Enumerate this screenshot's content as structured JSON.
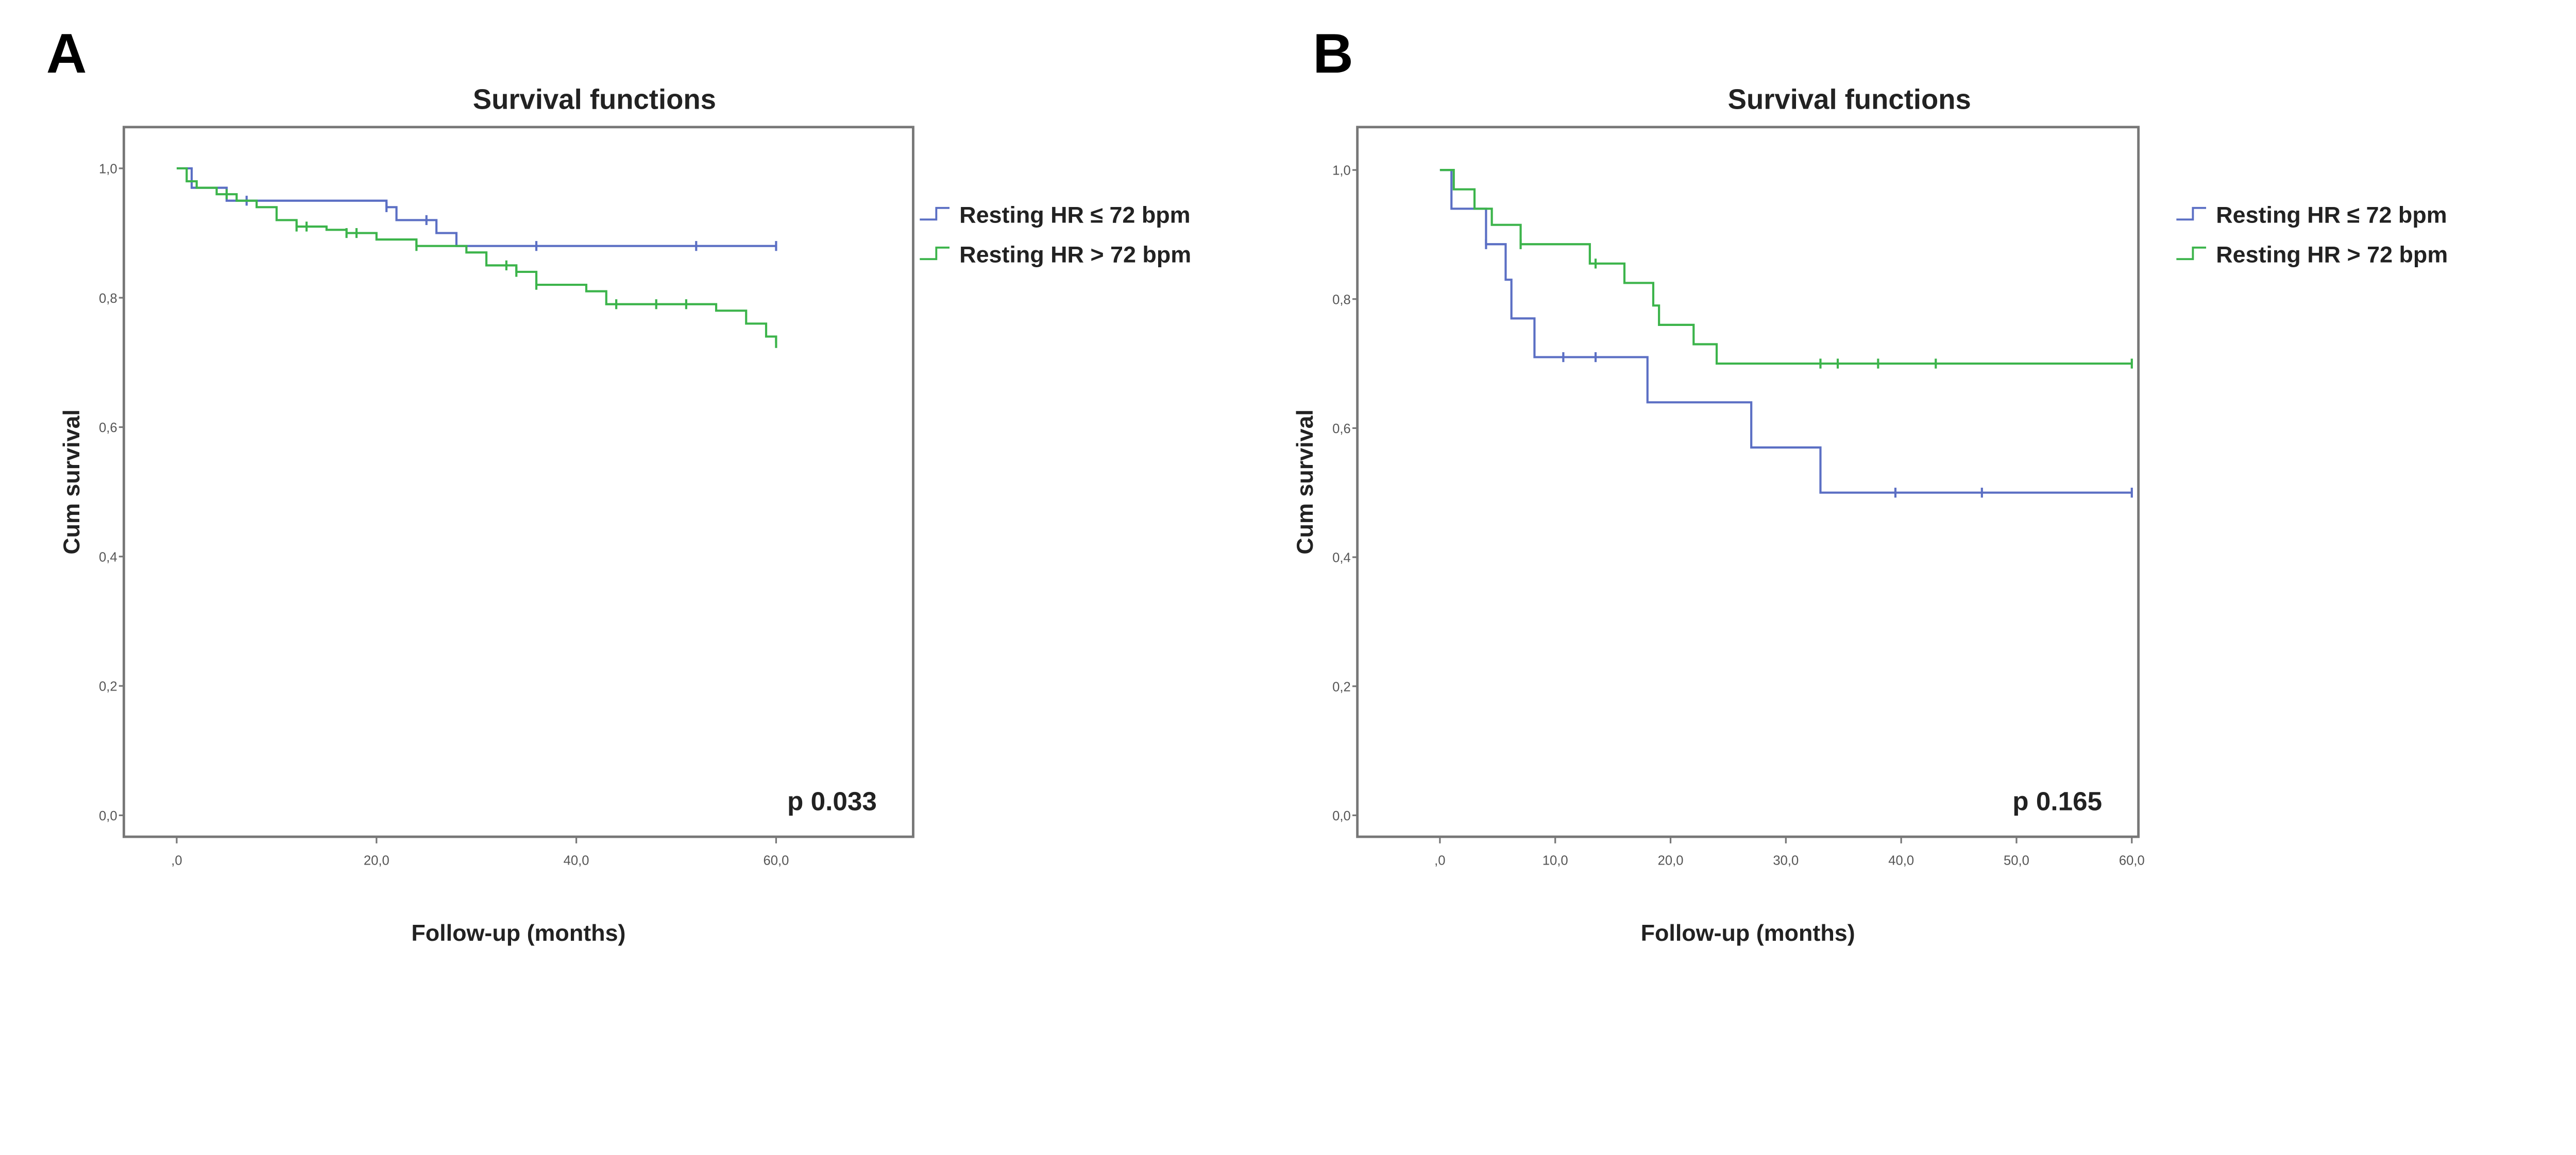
{
  "chart_data": [
    {
      "type": "line",
      "panel": "A",
      "title": "Survival functions",
      "xlabel": "Follow-up (months)",
      "ylabel": "Cum survival",
      "xticks": [
        ",0",
        "20,0",
        "40,0",
        "60,0"
      ],
      "xtick_values": [
        0,
        20,
        40,
        60
      ],
      "yticks": [
        "0,0",
        "0,2",
        "0,4",
        "0,6",
        "0,8",
        "1,0"
      ],
      "ytick_values": [
        0,
        0.2,
        0.4,
        0.6,
        0.8,
        1.0
      ],
      "xlim": [
        -3,
        72
      ],
      "ylim": [
        -0.05,
        1.1
      ],
      "annotation": "p 0.033",
      "legend_position": "right",
      "series": [
        {
          "name": "Resting HR ≤ 72 bpm",
          "color": "#5b6fc4",
          "steps": [
            [
              0,
              1.0
            ],
            [
              1.5,
              0.97
            ],
            [
              5,
              0.95
            ],
            [
              21,
              0.94
            ],
            [
              22,
              0.92
            ],
            [
              26,
              0.9
            ],
            [
              28,
              0.88
            ],
            [
              60,
              0.88
            ]
          ],
          "censored": [
            7,
            21,
            25,
            36,
            52,
            60
          ]
        },
        {
          "name": "Resting HR > 72 bpm",
          "color": "#3cb44b",
          "steps": [
            [
              0,
              1.0
            ],
            [
              1,
              0.98
            ],
            [
              2,
              0.97
            ],
            [
              4,
              0.96
            ],
            [
              6,
              0.95
            ],
            [
              8,
              0.94
            ],
            [
              10,
              0.92
            ],
            [
              12,
              0.91
            ],
            [
              15,
              0.905
            ],
            [
              17,
              0.9
            ],
            [
              20,
              0.89
            ],
            [
              24,
              0.88
            ],
            [
              29,
              0.87
            ],
            [
              31,
              0.85
            ],
            [
              34,
              0.84
            ],
            [
              36,
              0.82
            ],
            [
              41,
              0.81
            ],
            [
              43,
              0.79
            ],
            [
              52,
              0.79
            ],
            [
              54,
              0.78
            ],
            [
              57,
              0.76
            ],
            [
              59,
              0.74
            ],
            [
              60,
              0.73
            ]
          ],
          "censored": [
            5,
            12,
            13,
            17,
            18,
            24,
            33,
            34,
            36,
            44,
            48,
            51,
            60
          ]
        }
      ]
    },
    {
      "type": "line",
      "panel": "B",
      "title": "Survival functions",
      "xlabel": "Follow-up (months)",
      "ylabel": "Cum survival",
      "xticks": [
        ",0",
        "10,0",
        "20,0",
        "30,0",
        "40,0",
        "50,0",
        "60,0"
      ],
      "xtick_values": [
        0,
        10,
        20,
        30,
        40,
        50,
        60
      ],
      "yticks": [
        "0,0",
        "0,2",
        "0,4",
        "0,6",
        "0,8",
        "1,0"
      ],
      "ytick_values": [
        0,
        0.2,
        0.4,
        0.6,
        0.8,
        1.0
      ],
      "xlim": [
        -3,
        63
      ],
      "ylim": [
        -0.05,
        1.1
      ],
      "annotation": "p 0.165",
      "legend_position": "right",
      "series": [
        {
          "name": "Resting HR ≤ 72 bpm",
          "color": "#5b6fc4",
          "steps": [
            [
              0,
              1.0
            ],
            [
              1,
              0.94
            ],
            [
              4,
              0.885
            ],
            [
              5.7,
              0.83
            ],
            [
              6.2,
              0.77
            ],
            [
              8.2,
              0.71
            ],
            [
              18,
              0.64
            ],
            [
              27,
              0.57
            ],
            [
              33,
              0.5
            ],
            [
              60,
              0.5
            ]
          ],
          "censored": [
            4,
            10.7,
            13.5,
            39.5,
            47,
            60
          ]
        },
        {
          "name": "Resting HR > 72 bpm",
          "color": "#3cb44b",
          "steps": [
            [
              0,
              1.0
            ],
            [
              1.2,
              0.97
            ],
            [
              3,
              0.94
            ],
            [
              4.5,
              0.915
            ],
            [
              7,
              0.885
            ],
            [
              13,
              0.855
            ],
            [
              16,
              0.825
            ],
            [
              18.5,
              0.79
            ],
            [
              19,
              0.76
            ],
            [
              22,
              0.73
            ],
            [
              24,
              0.7
            ],
            [
              60,
              0.7
            ]
          ],
          "censored": [
            7,
            13.5,
            33,
            34.5,
            38,
            43,
            60
          ]
        }
      ]
    }
  ]
}
